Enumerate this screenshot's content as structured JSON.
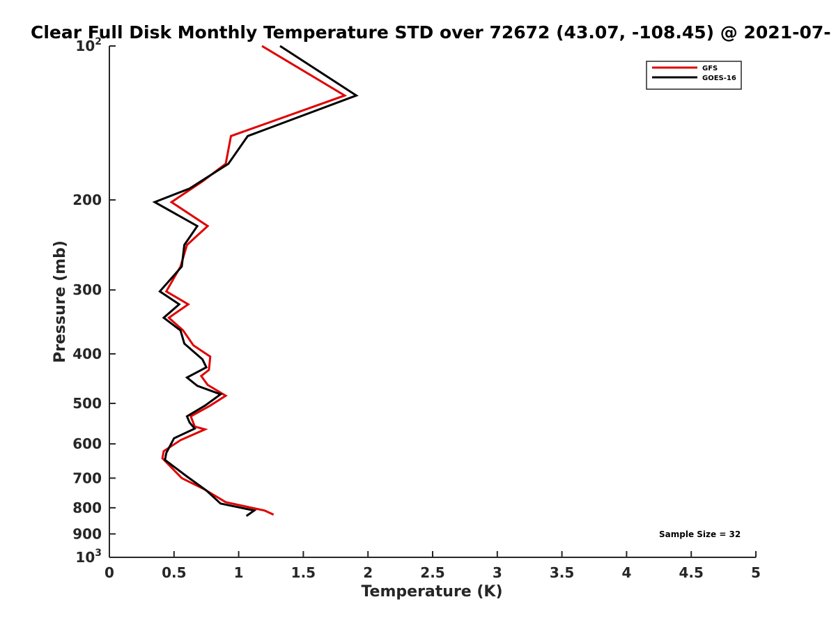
{
  "chart_data": {
    "type": "line",
    "title": "Clear Full Disk Monthly Temperature STD over 72672 (43.07, -108.45) @ 2021-07-",
    "xlabel": "Temperature (K)",
    "ylabel": "Pressure (mb)",
    "xlim": [
      0,
      5
    ],
    "ylim": [
      100,
      1000
    ],
    "yscale": "log",
    "y_reversed": true,
    "x_ticks": [
      0,
      0.5,
      1,
      1.5,
      2,
      2.5,
      3,
      3.5,
      4,
      4.5,
      5
    ],
    "x_tick_labels": [
      "0",
      "0.5",
      "1",
      "1.5",
      "2",
      "2.5",
      "3",
      "3.5",
      "4",
      "4.5",
      "5"
    ],
    "y_ticks": [
      100,
      200,
      300,
      400,
      500,
      600,
      700,
      800,
      900,
      1000
    ],
    "y_tick_labels": [
      {
        "base": "10",
        "exp": "2"
      },
      {
        "base": "200",
        "exp": ""
      },
      {
        "base": "300",
        "exp": ""
      },
      {
        "base": "400",
        "exp": ""
      },
      {
        "base": "500",
        "exp": ""
      },
      {
        "base": "600",
        "exp": ""
      },
      {
        "base": "700",
        "exp": ""
      },
      {
        "base": "800",
        "exp": ""
      },
      {
        "base": "900",
        "exp": ""
      },
      {
        "base": "10",
        "exp": "3"
      }
    ],
    "legend_position": "top-right",
    "annotation": "Sample Size = 32",
    "series": [
      {
        "name": "GFS",
        "color": "#e00000",
        "points": [
          {
            "x": 1.18,
            "p": 100
          },
          {
            "x": 1.82,
            "p": 125
          },
          {
            "x": 0.94,
            "p": 150
          },
          {
            "x": 0.9,
            "p": 170
          },
          {
            "x": 0.72,
            "p": 184
          },
          {
            "x": 0.48,
            "p": 202
          },
          {
            "x": 0.76,
            "p": 225
          },
          {
            "x": 0.6,
            "p": 245
          },
          {
            "x": 0.55,
            "p": 270
          },
          {
            "x": 0.44,
            "p": 302
          },
          {
            "x": 0.61,
            "p": 320
          },
          {
            "x": 0.46,
            "p": 340
          },
          {
            "x": 0.57,
            "p": 360
          },
          {
            "x": 0.65,
            "p": 385
          },
          {
            "x": 0.78,
            "p": 405
          },
          {
            "x": 0.77,
            "p": 430
          },
          {
            "x": 0.71,
            "p": 442
          },
          {
            "x": 0.76,
            "p": 460
          },
          {
            "x": 0.9,
            "p": 483
          },
          {
            "x": 0.78,
            "p": 505
          },
          {
            "x": 0.63,
            "p": 530
          },
          {
            "x": 0.66,
            "p": 555
          },
          {
            "x": 0.74,
            "p": 562
          },
          {
            "x": 0.55,
            "p": 590
          },
          {
            "x": 0.42,
            "p": 620
          },
          {
            "x": 0.41,
            "p": 640
          },
          {
            "x": 0.56,
            "p": 700
          },
          {
            "x": 0.73,
            "p": 735
          },
          {
            "x": 0.9,
            "p": 780
          },
          {
            "x": 1.2,
            "p": 810
          },
          {
            "x": 1.27,
            "p": 825
          }
        ]
      },
      {
        "name": "GOES-16",
        "color": "#000000",
        "points": [
          {
            "x": 1.32,
            "p": 100
          },
          {
            "x": 1.91,
            "p": 125
          },
          {
            "x": 1.07,
            "p": 150
          },
          {
            "x": 0.92,
            "p": 170
          },
          {
            "x": 0.62,
            "p": 190
          },
          {
            "x": 0.35,
            "p": 202
          },
          {
            "x": 0.68,
            "p": 225
          },
          {
            "x": 0.58,
            "p": 245
          },
          {
            "x": 0.56,
            "p": 270
          },
          {
            "x": 0.39,
            "p": 302
          },
          {
            "x": 0.54,
            "p": 320
          },
          {
            "x": 0.42,
            "p": 340
          },
          {
            "x": 0.55,
            "p": 360
          },
          {
            "x": 0.58,
            "p": 382
          },
          {
            "x": 0.72,
            "p": 410
          },
          {
            "x": 0.75,
            "p": 425
          },
          {
            "x": 0.6,
            "p": 445
          },
          {
            "x": 0.68,
            "p": 462
          },
          {
            "x": 0.86,
            "p": 480
          },
          {
            "x": 0.74,
            "p": 505
          },
          {
            "x": 0.6,
            "p": 530
          },
          {
            "x": 0.62,
            "p": 545
          },
          {
            "x": 0.66,
            "p": 560
          },
          {
            "x": 0.5,
            "p": 585
          },
          {
            "x": 0.44,
            "p": 625
          },
          {
            "x": 0.43,
            "p": 645
          },
          {
            "x": 0.6,
            "p": 695
          },
          {
            "x": 0.75,
            "p": 740
          },
          {
            "x": 0.86,
            "p": 785
          },
          {
            "x": 1.12,
            "p": 810
          },
          {
            "x": 1.06,
            "p": 830
          }
        ]
      }
    ]
  }
}
